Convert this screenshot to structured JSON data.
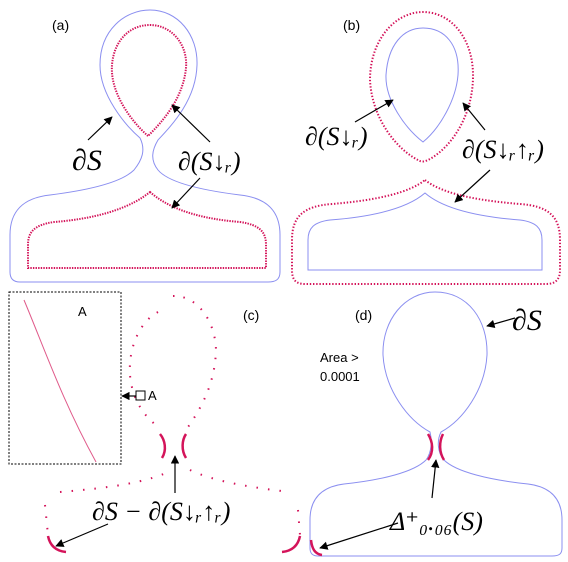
{
  "colors": {
    "outline": "#8b8ff0",
    "dots": "#d4145a",
    "arrow": "#000000",
    "inset_border": "#000000",
    "inset_line": "#e05a8a"
  },
  "panels": {
    "a": {
      "label": "(a)",
      "boundary_label": "∂S",
      "eroded_label": "∂(S↓ᵣ)"
    },
    "b": {
      "label": "(b)",
      "eroded_label": "∂(S↓ᵣ)",
      "opened_label": "∂(S↓ᵣ↑ᵣ)"
    },
    "c": {
      "label": "(c)",
      "inset_label": "A",
      "marker_label": "A",
      "difference_label": "∂S − ∂(S↓ᵣ↑ᵣ)"
    },
    "d": {
      "label": "(d)",
      "boundary_label": "∂S",
      "area_label_line1": "Area >",
      "area_label_line2": "0.0001",
      "delta_label": "Δ⁺₀.₀₆(S)"
    }
  }
}
